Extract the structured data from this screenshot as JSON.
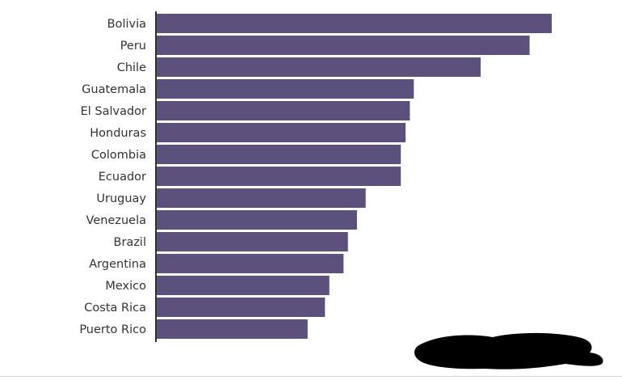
{
  "chart_data": {
    "type": "bar",
    "orientation": "horizontal",
    "categories": [
      "Bolivia",
      "Peru",
      "Chile",
      "Guatemala",
      "El Salvador",
      "Honduras",
      "Colombia",
      "Ecuador",
      "Uruguay",
      "Venezuela",
      "Brazil",
      "Argentina",
      "Mexico",
      "Costa Rica",
      "Puerto Rico"
    ],
    "values": [
      100,
      94.4,
      82.0,
      65.1,
      64.1,
      63.0,
      61.8,
      61.8,
      52.9,
      50.7,
      48.4,
      47.3,
      43.7,
      42.6,
      38.2
    ],
    "xlim": [
      0,
      100
    ],
    "bar_color": "#5c507c",
    "grid": false,
    "legend": "none"
  }
}
